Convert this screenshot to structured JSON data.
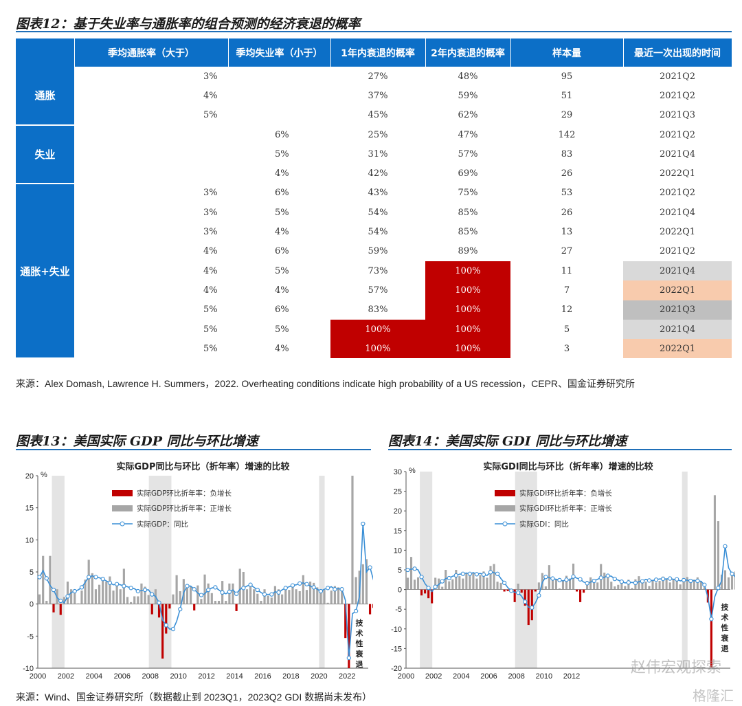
{
  "fig12": {
    "title": "图表12：基于失业率与通胀率的组合预测的经济衰退的概率",
    "headers": [
      "",
      "季均通胀率（大于）",
      "季均失业率（小于）",
      "1年内衰退的概率",
      "2年内衰退的概率",
      "样本量",
      "最近一次出现的时间"
    ],
    "groups": [
      {
        "label": "通胀",
        "rows": [
          {
            "infl": "3%",
            "unemp": "",
            "p1": "27%",
            "p2": "48%",
            "n": "95",
            "last": "2021Q2"
          },
          {
            "infl": "4%",
            "unemp": "",
            "p1": "37%",
            "p2": "59%",
            "n": "51",
            "last": "2021Q2"
          },
          {
            "infl": "5%",
            "unemp": "",
            "p1": "45%",
            "p2": "62%",
            "n": "29",
            "last": "2021Q3"
          }
        ]
      },
      {
        "label": "失业",
        "rows": [
          {
            "infl": "",
            "unemp": "6%",
            "p1": "25%",
            "p2": "47%",
            "n": "142",
            "last": "2021Q2"
          },
          {
            "infl": "",
            "unemp": "5%",
            "p1": "31%",
            "p2": "57%",
            "n": "83",
            "last": "2021Q4"
          },
          {
            "infl": "",
            "unemp": "4%",
            "p1": "42%",
            "p2": "69%",
            "n": "26",
            "last": "2022Q1"
          }
        ]
      },
      {
        "label": "通胀+失业",
        "rows": [
          {
            "infl": "3%",
            "unemp": "6%",
            "p1": "43%",
            "p2": "75%",
            "n": "53",
            "last": "2021Q2"
          },
          {
            "infl": "3%",
            "unemp": "5%",
            "p1": "54%",
            "p2": "85%",
            "n": "26",
            "last": "2021Q4"
          },
          {
            "infl": "3%",
            "unemp": "4%",
            "p1": "54%",
            "p2": "85%",
            "n": "13",
            "last": "2022Q1"
          },
          {
            "infl": "4%",
            "unemp": "6%",
            "p1": "59%",
            "p2": "89%",
            "n": "27",
            "last": "2021Q2"
          },
          {
            "infl": "4%",
            "unemp": "5%",
            "p1": "73%",
            "p2": "100%",
            "n": "11",
            "last": "2021Q4",
            "hl2": "red",
            "hlLast": "g1"
          },
          {
            "infl": "4%",
            "unemp": "4%",
            "p1": "57%",
            "p2": "100%",
            "n": "7",
            "last": "2022Q1",
            "hl2": "red",
            "hlLast": "pk"
          },
          {
            "infl": "5%",
            "unemp": "6%",
            "p1": "83%",
            "p2": "100%",
            "n": "12",
            "last": "2021Q3",
            "hl2": "red",
            "hlLast": "g2"
          },
          {
            "infl": "5%",
            "unemp": "5%",
            "p1": "100%",
            "p2": "100%",
            "n": "5",
            "last": "2021Q4",
            "hl1": "red",
            "hl2": "red",
            "hlLast": "g1"
          },
          {
            "infl": "5%",
            "unemp": "4%",
            "p1": "100%",
            "p2": "100%",
            "n": "3",
            "last": "2022Q1",
            "hl1": "red",
            "hl2": "red",
            "hlLast": "pk"
          }
        ]
      }
    ],
    "source": "来源：Alex Domash, Lawrence H. Summers，2022. Overheating conditions indicate high probability of a US recession，CEPR、国金证券研究所"
  },
  "fig13": {
    "title": "图表13：美国实际 GDP 同比与环比增速",
    "chart_data": {
      "type": "bar",
      "title": "实际GDP同比与环比（折年率）增速的比较",
      "ylabel": "%",
      "ylim": [
        -10,
        20
      ],
      "yticks": [
        "20",
        "15",
        "10",
        "5",
        "0",
        "-5",
        "-10"
      ],
      "xticks": [
        "2000",
        "2002",
        "2004",
        "2006",
        "2008",
        "2010",
        "2012",
        "2014",
        "2016",
        "2018",
        "2020",
        "2022"
      ],
      "x_range": [
        2000,
        2023.5
      ],
      "recessions": [
        [
          2001.0,
          2001.9
        ],
        [
          2007.9,
          2009.5
        ],
        [
          2020.0,
          2020.4
        ]
      ],
      "legend": [
        "实际GDP环比折年率：负增长",
        "实际GDP环比折年率：正增长",
        "实际GDP：同比"
      ],
      "annotation": "技术性衰退",
      "qoq": [
        1.5,
        7.5,
        0.5,
        7.5,
        -1.3,
        2.3,
        -1.7,
        1.1,
        3.5,
        2.3,
        1.7,
        0.1,
        2.1,
        3.8,
        6.9,
        4.8,
        2.3,
        3.0,
        3.7,
        3.5,
        4.3,
        2.1,
        3.4,
        2.3,
        5.5,
        1.1,
        0.3,
        1.2,
        1.2,
        3.2,
        2.7,
        1.4,
        -1.6,
        2.3,
        -2.1,
        -8.5,
        -4.6,
        -0.7,
        1.5,
        4.5,
        2.0,
        3.9,
        2.8,
        2.8,
        -1.0,
        2.9,
        0.8,
        4.6,
        3.2,
        1.7,
        0.5,
        0.5,
        3.6,
        0.5,
        3.2,
        3.2,
        -1.1,
        5.5,
        5.0,
        2.3,
        3.2,
        2.3,
        1.6,
        0.5,
        2.3,
        1.3,
        1.0,
        2.8,
        2.3,
        1.5,
        2.3,
        2.2,
        2.8,
        2.3,
        2.0,
        4.5,
        2.2,
        3.5,
        3.3,
        2.6,
        2.0,
        2.2,
        0.2,
        2.1,
        2.8,
        2.6,
        2.3,
        -5.3,
        -28.0,
        34.8,
        4.2,
        5.2,
        6.2,
        7.0,
        -1.6,
        -0.6,
        3.2,
        2.6,
        2.0
      ],
      "yoy": [
        4.2,
        5.2,
        4.0,
        2.9,
        2.2,
        1.0,
        0.5,
        0.2,
        1.2,
        1.8,
        2.0,
        2.2,
        2.6,
        3.4,
        4.2,
        4.4,
        4.2,
        4.1,
        3.9,
        3.6,
        3.3,
        3.0,
        3.1,
        3.0,
        2.8,
        2.7,
        2.5,
        2.4,
        2.0,
        2.1,
        2.2,
        2.2,
        1.5,
        1.2,
        0.2,
        -2.5,
        -3.3,
        -3.9,
        -3.9,
        -2.7,
        -0.8,
        1.8,
        2.8,
        2.8,
        2.3,
        1.7,
        1.4,
        1.6,
        2.2,
        2.5,
        2.6,
        2.2,
        1.8,
        1.6,
        1.9,
        2.2,
        1.6,
        2.3,
        2.5,
        2.8,
        3.0,
        2.6,
        2.2,
        1.8,
        1.5,
        1.5,
        1.5,
        1.9,
        1.8,
        2.2,
        2.5,
        2.7,
        2.9,
        3.0,
        3.2,
        3.3,
        3.1,
        2.8,
        2.6,
        2.3,
        2.0,
        2.3,
        2.5,
        2.7,
        2.3,
        2.4,
        2.3,
        0.6,
        -8.4,
        -1.5,
        -1.1,
        1.2,
        12.5,
        5.0,
        5.7,
        3.7,
        1.8,
        0.9,
        1.6
      ],
      "x_start": 2000.0
    }
  },
  "fig14": {
    "title": "图表14：美国实际 GDI 同比与环比增速",
    "chart_data": {
      "type": "bar",
      "title": "实际GDI同比与环比（折年率）增速的比较",
      "ylabel": "%",
      "ylim": [
        -20,
        30
      ],
      "yticks": [
        "30",
        "25",
        "20",
        "15",
        "10",
        "5",
        "0",
        "-5",
        "-10",
        "-15",
        "-20"
      ],
      "xticks": [
        "2000",
        "2002",
        "2004",
        "2006",
        "2008",
        "2010",
        "2012"
      ],
      "x_range": [
        2000,
        2023.5
      ],
      "recessions": [
        [
          2001.0,
          2001.9
        ],
        [
          2007.9,
          2009.5
        ],
        [
          2020.0,
          2020.4
        ]
      ],
      "legend": [
        "实际GDI环比折年率：负增长",
        "实际GDI环比折年率：正增长",
        "实际GDI：同比"
      ],
      "annotation": "技术性衰退",
      "qoq": [
        3.0,
        8.3,
        2.5,
        3.1,
        -1.5,
        -1.0,
        -2.2,
        -3.5,
        3.0,
        2.8,
        0.7,
        5.0,
        2.1,
        2.6,
        5.0,
        3.4,
        2.8,
        4.1,
        4.2,
        4.2,
        2.8,
        3.7,
        4.6,
        3.0,
        6.0,
        6.5,
        2.0,
        1.7,
        -0.5,
        -0.4,
        -0.2,
        -3.2,
        1.5,
        -0.8,
        -4.1,
        -9.0,
        -7.8,
        -0.5,
        1.8,
        4.2,
        0.8,
        6.2,
        2.3,
        2.5,
        0.3,
        2.3,
        3.5,
        2.8,
        6.6,
        -0.5,
        -3.2,
        -0.8,
        2.2,
        3.1,
        2.6,
        1.8,
        6.5,
        4.3,
        3.1,
        2.0,
        0.8,
        1.2,
        2.3,
        0.9,
        2.5,
        0.4,
        2.6,
        3.4,
        2.5,
        2.0,
        0.9,
        2.3,
        1.8,
        2.2,
        3.3,
        2.7,
        1.8,
        2.6,
        3.0,
        1.3,
        1.9,
        3.2,
        1.7,
        2.5,
        3.1,
        2.2,
        0.6,
        -3.3,
        -19.8,
        24.0,
        17.4,
        3.8,
        4.9,
        3.1,
        4.1,
        4.6,
        -1.0,
        1.8,
        -3.3
      ],
      "yoy": [
        5.0,
        5.2,
        5.3,
        5.0,
        3.2,
        1.5,
        0.4,
        -0.5,
        0.7,
        1.3,
        2.1,
        2.8,
        2.9,
        3.4,
        3.6,
        3.9,
        4.0,
        4.2,
        4.0,
        4.3,
        3.9,
        4.1,
        3.8,
        3.6,
        4.4,
        4.3,
        4.0,
        2.8,
        1.7,
        0.5,
        -0.3,
        -0.7,
        -0.8,
        -1.7,
        -3.1,
        -4.5,
        -4.6,
        -3.4,
        -1.5,
        1.8,
        3.2,
        3.0,
        2.8,
        2.6,
        2.4,
        2.2,
        2.5,
        2.4,
        3.3,
        2.9,
        2.6,
        1.9,
        1.6,
        1.9,
        2.2,
        2.6,
        3.0,
        3.1,
        3.5,
        3.4,
        2.7,
        2.4,
        2.0,
        1.7,
        1.8,
        1.8,
        1.7,
        2.0,
        2.1,
        2.6,
        2.3,
        2.3,
        2.5,
        2.7,
        2.7,
        2.7,
        2.8,
        2.6,
        2.6,
        2.2,
        2.4,
        2.4,
        2.2,
        2.3,
        2.2,
        2.1,
        1.2,
        -2.0,
        -7.5,
        -1.8,
        0.4,
        2.2,
        11.0,
        5.5,
        4.0,
        3.2,
        2.3,
        1.1,
        -0.8
      ],
      "x_start": 2000.0
    }
  },
  "bottom_source": "来源：Wind、国金证券研究所（数据截止到 2023Q1，2023Q2 GDI 数据尚未发布）",
  "watermark": "赵伟宏观探索",
  "watermark2": "格隆汇"
}
